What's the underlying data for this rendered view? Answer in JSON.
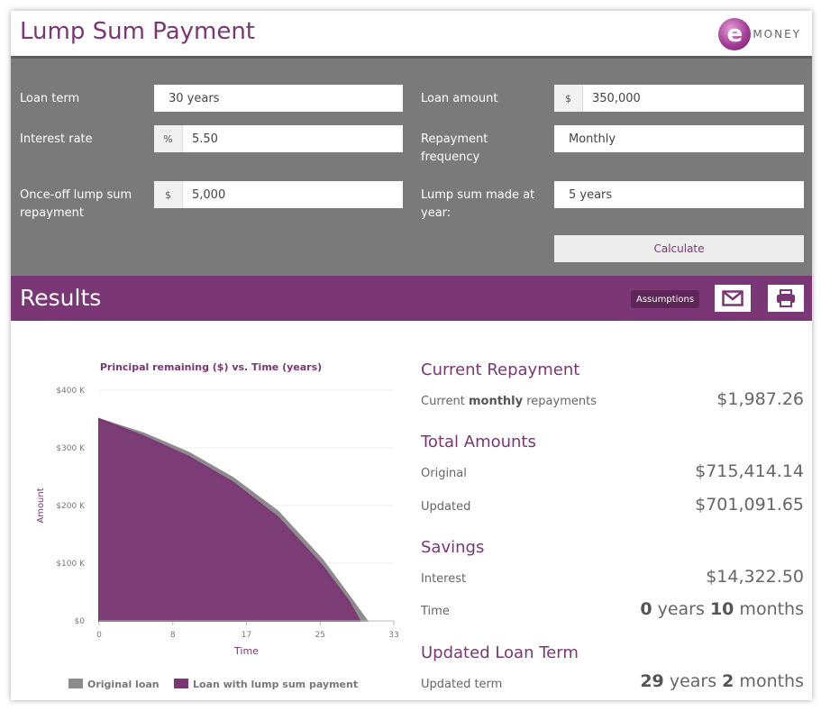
{
  "header": {
    "title": "Lump Sum Payment",
    "logo_letter": "e",
    "logo_text": "MONEY"
  },
  "form": {
    "loan_term": {
      "label": "Loan term",
      "value": "30 years"
    },
    "interest_rate": {
      "label": "Interest rate",
      "prefix": "%",
      "value": "5.50"
    },
    "lump_sum": {
      "label_1": "Once-off lump sum",
      "label_2": "repayment",
      "prefix": "$",
      "value": "5,000"
    },
    "loan_amount": {
      "label": "Loan amount",
      "prefix": "$",
      "value": "350,000"
    },
    "frequency": {
      "label_1": "Repayment",
      "label_2": "frequency",
      "value": "Monthly"
    },
    "lump_year": {
      "label_1": "Lump sum made at",
      "label_2": "year:",
      "value": "5 years"
    },
    "calculate_label": "Calculate"
  },
  "results_bar": {
    "title": "Results",
    "assumptions_label": "Assumptions",
    "email_icon": "envelope-icon",
    "print_icon": "printer-icon"
  },
  "results": {
    "current_repayment": {
      "heading": "Current Repayment",
      "label_pre": "Current ",
      "label_bold": "monthly",
      "label_post": " repayments",
      "value": "$1,987.26"
    },
    "total_amounts": {
      "heading": "Total Amounts",
      "original_label": "Original",
      "original_value": "$715,414.14",
      "updated_label": "Updated",
      "updated_value": "$701,091.65"
    },
    "savings": {
      "heading": "Savings",
      "interest_label": "Interest",
      "interest_value": "$14,322.50",
      "time_label": "Time",
      "time_years": "0",
      "time_years_unit": " years ",
      "time_months": "10",
      "time_months_unit": " months"
    },
    "updated_term": {
      "heading": "Updated Loan Term",
      "label": "Updated term",
      "years": "29",
      "years_unit": " years ",
      "months": "2",
      "months_unit": " months"
    }
  },
  "colors": {
    "accent": "#7b3675",
    "original_series": "#8c8c8c",
    "lump_series": "#7b3675"
  },
  "chart_data": {
    "type": "area",
    "title": "Principal remaining ($) vs. Time (years)",
    "xlabel": "Time",
    "ylabel": "Amount",
    "xlim": [
      0,
      33
    ],
    "ylim": [
      0,
      400000
    ],
    "x_ticks": [
      "0",
      "8",
      "17",
      "25",
      "33"
    ],
    "y_ticks": [
      "$0",
      "$100 K",
      "$200 K",
      "$300 K",
      "$400 K"
    ],
    "legend_position": "bottom",
    "series": [
      {
        "name": "Original loan",
        "x": [
          0,
          5,
          10,
          15,
          20,
          25,
          28,
          30
        ],
        "values": [
          350000,
          325000,
          292000,
          248000,
          190000,
          106000,
          43000,
          0
        ]
      },
      {
        "name": "Loan with lump sum payment",
        "x": [
          0,
          5,
          10,
          15,
          20,
          25,
          28,
          29.17
        ],
        "values": [
          350000,
          320000,
          285000,
          240000,
          180000,
          95000,
          33000,
          0
        ]
      }
    ]
  }
}
